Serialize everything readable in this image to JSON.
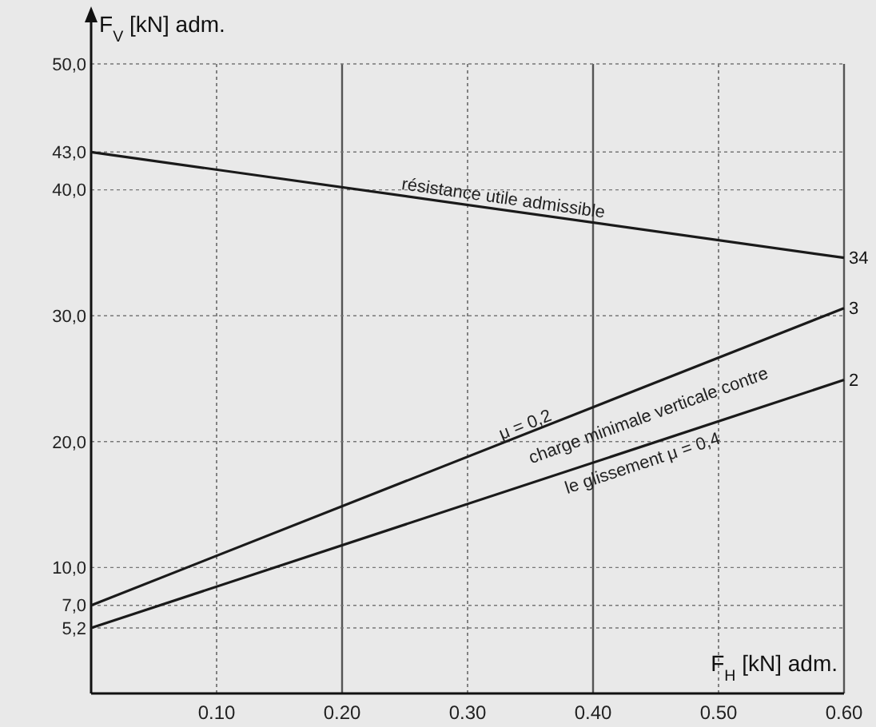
{
  "chart_data": {
    "type": "line",
    "xlabel": "F$_{H}$ [kN] adm.",
    "ylabel": "F$_{V}$ [kN] adm.",
    "xlim": [
      0,
      0.6
    ],
    "ylim": [
      0,
      50
    ],
    "xticks": [
      {
        "value": 0.1,
        "label": "0.10"
      },
      {
        "value": 0.2,
        "label": "0.20"
      },
      {
        "value": 0.3,
        "label": "0.30"
      },
      {
        "value": 0.4,
        "label": "0.40"
      },
      {
        "value": 0.5,
        "label": "0.50"
      },
      {
        "value": 0.6,
        "label": "0.60"
      }
    ],
    "yticks": [
      {
        "value": 5.2,
        "label": "5,2"
      },
      {
        "value": 7,
        "label": "7,0"
      },
      {
        "value": 10,
        "label": "10,0"
      },
      {
        "value": 20,
        "label": "20,0"
      },
      {
        "value": 30,
        "label": "30,0"
      },
      {
        "value": 40,
        "label": "40,0"
      },
      {
        "value": 43,
        "label": "43,0"
      },
      {
        "value": 50,
        "label": "50,0"
      }
    ],
    "grid": true,
    "x": [
      0,
      0.6
    ],
    "series": [
      {
        "name": "résistance utile admissible",
        "color": "#1a1a1a",
        "values": [
          43,
          34.6
        ]
      },
      {
        "name": "μ = 0,2",
        "color": "#1a1a1a",
        "values": [
          7,
          30.6
        ]
      },
      {
        "name": "le glissement μ = 0,4",
        "color": "#1a1a1a",
        "values": [
          5.2,
          24.9
        ]
      }
    ],
    "annotations": [
      "charge minimale verticale contre",
      "34",
      "3",
      "2"
    ]
  }
}
